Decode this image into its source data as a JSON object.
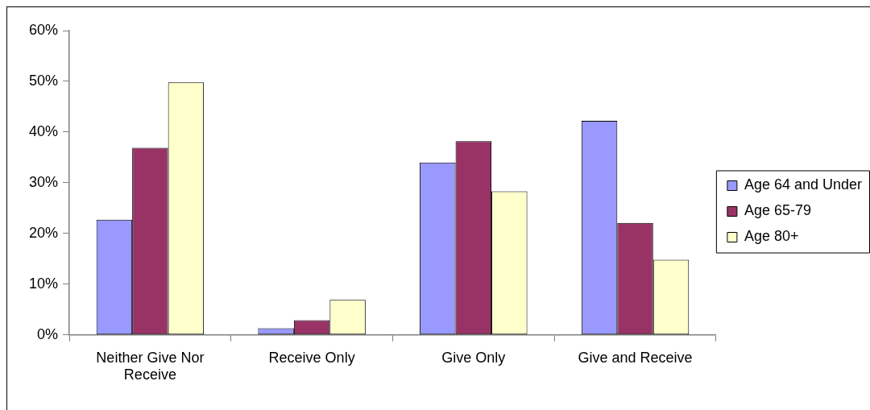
{
  "chart_data": {
    "type": "bar",
    "categories": [
      "Neither Give Nor Receive",
      "Receive Only",
      "Give Only",
      "Give and Receive"
    ],
    "series": [
      {
        "name": "Age 64 and Under",
        "color": "#9999ff",
        "values": [
          22.7,
          1.3,
          34.0,
          42.2
        ]
      },
      {
        "name": "Age 65-79",
        "color": "#993366",
        "values": [
          36.9,
          2.9,
          38.2,
          22.1
        ]
      },
      {
        "name": "Age 80+",
        "color": "#ffffcc",
        "values": [
          49.8,
          6.9,
          28.3,
          14.8
        ]
      }
    ],
    "ylim": [
      0,
      60
    ],
    "yticks": [
      {
        "value": 0,
        "label": "0%"
      },
      {
        "value": 10,
        "label": "10%"
      },
      {
        "value": 20,
        "label": "20%"
      },
      {
        "value": 30,
        "label": "30%"
      },
      {
        "value": 40,
        "label": "40%"
      },
      {
        "value": 50,
        "label": "50%"
      },
      {
        "value": 60,
        "label": "60%"
      }
    ],
    "grid": false,
    "legend": "right"
  }
}
